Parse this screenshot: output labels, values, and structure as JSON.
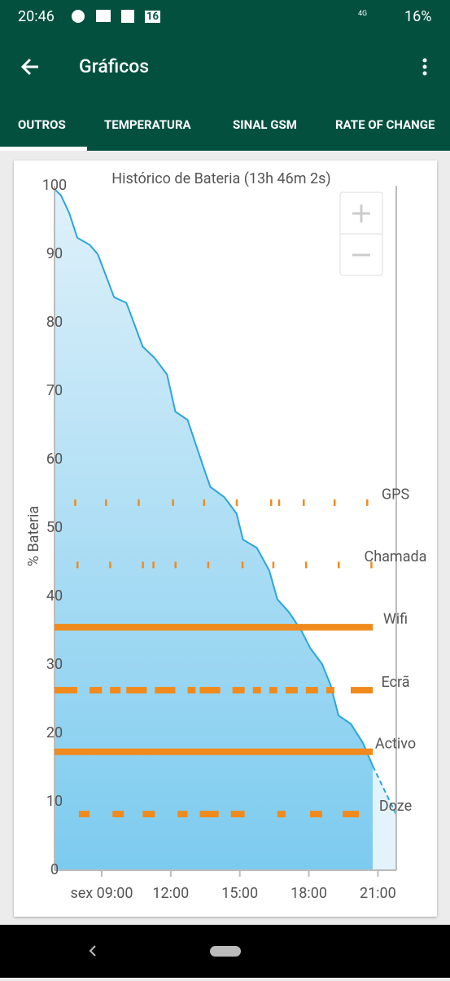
{
  "status_bar": {
    "time": "20:46",
    "calendar_day": "16",
    "network": "4G",
    "battery": "16%"
  },
  "app_bar": {
    "title": "Gráficos"
  },
  "tabs": [
    "OUTROS",
    "TEMPERATURA",
    "SINAL GSM",
    "RATE OF CHANGE"
  ],
  "selected_tab": 0,
  "chart_data": {
    "type": "area",
    "title": "Histórico de Bateria (13h 46m 2s)",
    "y_label": "% Bateria",
    "xlim": [
      6.95,
      21.8
    ],
    "ylim": [
      0,
      100
    ],
    "yticks": [
      0,
      10,
      20,
      30,
      40,
      50,
      60,
      70,
      80,
      90,
      100
    ],
    "xticks": [
      {
        "value": 9,
        "label": "sex 09:00"
      },
      {
        "value": 12,
        "label": "12:00"
      },
      {
        "value": 15,
        "label": "15:00"
      },
      {
        "value": 18,
        "label": "18:00"
      },
      {
        "value": 21,
        "label": "21:00"
      }
    ],
    "series": [
      {
        "color": "#2aa7d8",
        "x": [
          6.95,
          7.23,
          7.59,
          7.94,
          8.47,
          8.83,
          9.18,
          9.54,
          10.07,
          10.25,
          10.78,
          11.31,
          11.84,
          12.2,
          12.73,
          13.08,
          13.44,
          13.72,
          14.33,
          14.86,
          15.14,
          15.74,
          16.28,
          16.63,
          17.16,
          17.69,
          18.05,
          18.58,
          18.94,
          19.29,
          19.82,
          20.35,
          20.78
        ],
        "values": [
          99.5,
          98.6,
          96,
          92.4,
          91.4,
          90,
          86.9,
          83.7,
          82.9,
          81.3,
          76.5,
          74.8,
          72.4,
          67,
          65.8,
          62.3,
          58.7,
          56,
          54.5,
          52.1,
          48.3,
          47.1,
          43.8,
          39.6,
          37.6,
          34.9,
          32.5,
          30.1,
          27.1,
          22.6,
          21.4,
          18.6,
          15.2
        ]
      }
    ],
    "prediction": {
      "color": "#2aa7d8",
      "x": [
        20.78,
        21.8
      ],
      "values": [
        15.2,
        8.1
      ]
    },
    "lane_color": "#f08a1c",
    "lanes": [
      {
        "name": "GPS",
        "level": 53.7,
        "style": "ticks",
        "events": [
          7.84,
          9.18,
          10.6,
          12.09,
          13.44,
          14.86,
          16.35,
          16.7,
          17.77,
          19.11,
          20.53
        ]
      },
      {
        "name": "Chamada",
        "level": 44.6,
        "style": "ticks",
        "events": [
          7.94,
          9.36,
          10.78,
          11.24,
          12.2,
          13.62,
          15.11,
          16.45,
          17.87,
          19.29,
          20.71
        ]
      },
      {
        "name": "Wifi",
        "level": 35.5,
        "style": "bars",
        "segments": [
          [
            6.95,
            20.78
          ]
        ]
      },
      {
        "name": "Ecrã",
        "level": 26.3,
        "style": "bars",
        "segments": [
          [
            6.95,
            7.94
          ],
          [
            8.47,
            9.01
          ],
          [
            9.36,
            9.82
          ],
          [
            10.07,
            10.96
          ],
          [
            11.31,
            12.2
          ],
          [
            12.73,
            13.08
          ],
          [
            13.26,
            14.15
          ],
          [
            14.68,
            15.21
          ],
          [
            15.57,
            15.92
          ],
          [
            16.28,
            16.63
          ],
          [
            16.99,
            17.52
          ],
          [
            17.87,
            18.4
          ],
          [
            18.76,
            19.11
          ],
          [
            19.82,
            20.78
          ]
        ]
      },
      {
        "name": "Activo",
        "level": 17.3,
        "style": "bars",
        "segments": [
          [
            6.95,
            20.78
          ]
        ]
      },
      {
        "name": "Doze",
        "level": 8.2,
        "style": "bars",
        "segments": [
          [
            8.01,
            8.47
          ],
          [
            9.47,
            9.96
          ],
          [
            10.78,
            11.31
          ],
          [
            12.3,
            12.73
          ],
          [
            13.26,
            14.08
          ],
          [
            14.61,
            15.21
          ],
          [
            16.63,
            16.99
          ],
          [
            18.05,
            18.58
          ],
          [
            19.47,
            20.18
          ]
        ]
      }
    ]
  }
}
